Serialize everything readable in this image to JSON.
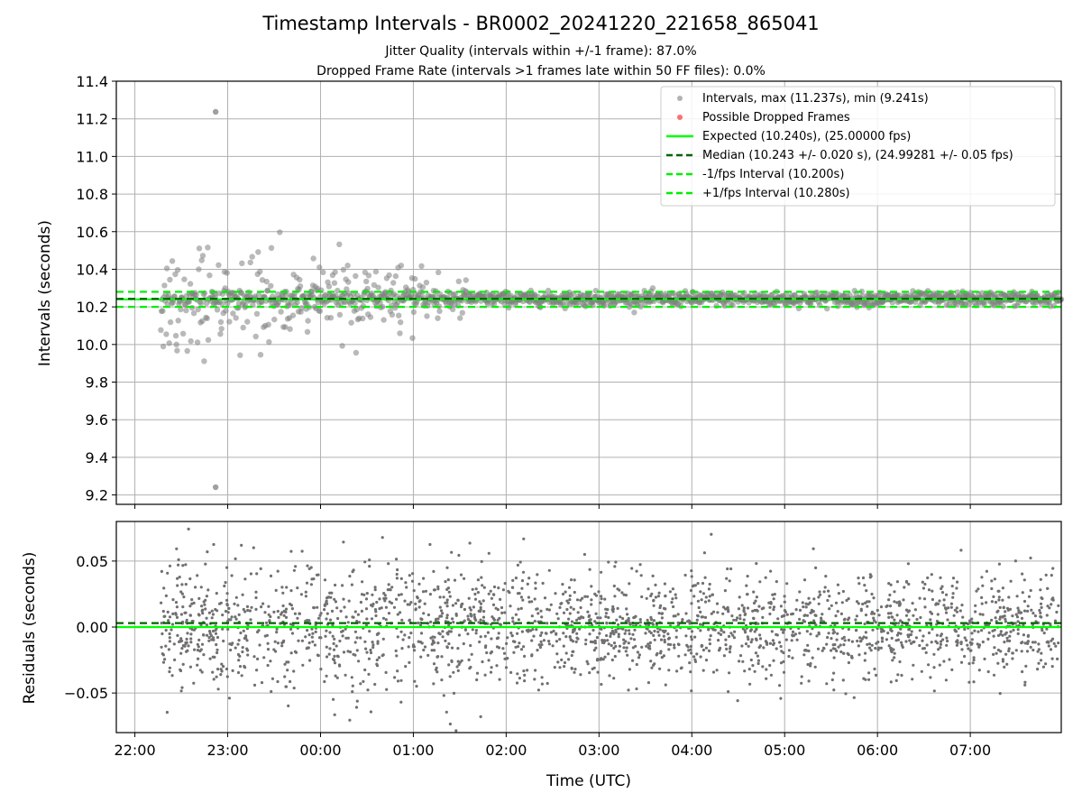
{
  "chart_data": [
    {
      "type": "scatter",
      "title": "Timestamp Intervals - BR0002_20241220_221658_865041",
      "subtitle_lines": [
        "Jitter Quality (intervals within +/-1 frame): 87.0%",
        "Dropped Frame Rate (intervals >1 frames late within 50 FF files): 0.0%"
      ],
      "ylabel": "Intervals (seconds)",
      "ylim": [
        9.15,
        11.4
      ],
      "yticks": [
        "9.2",
        "9.4",
        "9.6",
        "9.8",
        "10.0",
        "10.2",
        "10.4",
        "10.6",
        "10.8",
        "11.0",
        "11.2",
        "11.4"
      ],
      "xlim_hours": [
        21.8,
        31.98
      ],
      "grid": true,
      "legend_placement": "upper right",
      "series": [
        {
          "name": "Intervals, max (11.237s), min (9.241s)",
          "color": "#808080",
          "kind": "scatter",
          "max": 11.237,
          "min": 9.241
        },
        {
          "name": "Possible Dropped Frames",
          "color": "#ff3333",
          "kind": "scatter",
          "values": []
        },
        {
          "name": "Expected (10.240s), (25.00000 fps)",
          "color": "#00ff00",
          "kind": "hline",
          "y": 10.24
        },
        {
          "name": "Median (10.243 +/- 0.020 s), (24.99281 +/- 0.05 fps)",
          "color": "#006400",
          "kind": "hline-dashed",
          "y": 10.243
        },
        {
          "name": "-1/fps Interval (10.200s)",
          "color": "#00ee00",
          "kind": "hline-dashed",
          "y": 10.2
        },
        {
          "name": "+1/fps Interval (10.280s)",
          "color": "#00ee00",
          "kind": "hline-dashed",
          "y": 10.28
        }
      ],
      "scatter_summary": {
        "x_start_hours": 22.28,
        "x_end_hours": 31.98,
        "high_jitter_until_hours": 25.6,
        "notable_points": [
          {
            "x_hours": 22.87,
            "y": 11.237
          },
          {
            "x_hours": 22.87,
            "y": 9.241
          }
        ]
      }
    },
    {
      "type": "scatter",
      "xlabel": "Time (UTC)",
      "ylabel": "Residuals (seconds)",
      "ylim": [
        -0.08,
        0.08
      ],
      "yticks": [
        "−0.05",
        "0.00",
        "0.05"
      ],
      "ytick_values": [
        -0.05,
        0.0,
        0.05
      ],
      "xticks": [
        "22:00",
        "23:00",
        "00:00",
        "01:00",
        "02:00",
        "03:00",
        "04:00",
        "05:00",
        "06:00",
        "07:00"
      ],
      "xtick_hours": [
        22,
        23,
        24,
        25,
        26,
        27,
        28,
        29,
        30,
        31
      ],
      "grid": true,
      "series": [
        {
          "name": "",
          "color": "#808080",
          "kind": "scatter",
          "spread": 0.02
        },
        {
          "name": "",
          "color": "#00ff00",
          "kind": "hline",
          "y": 0.0
        },
        {
          "name": "",
          "color": "#006400",
          "kind": "hline-dashed",
          "y": 0.003
        }
      ]
    }
  ]
}
